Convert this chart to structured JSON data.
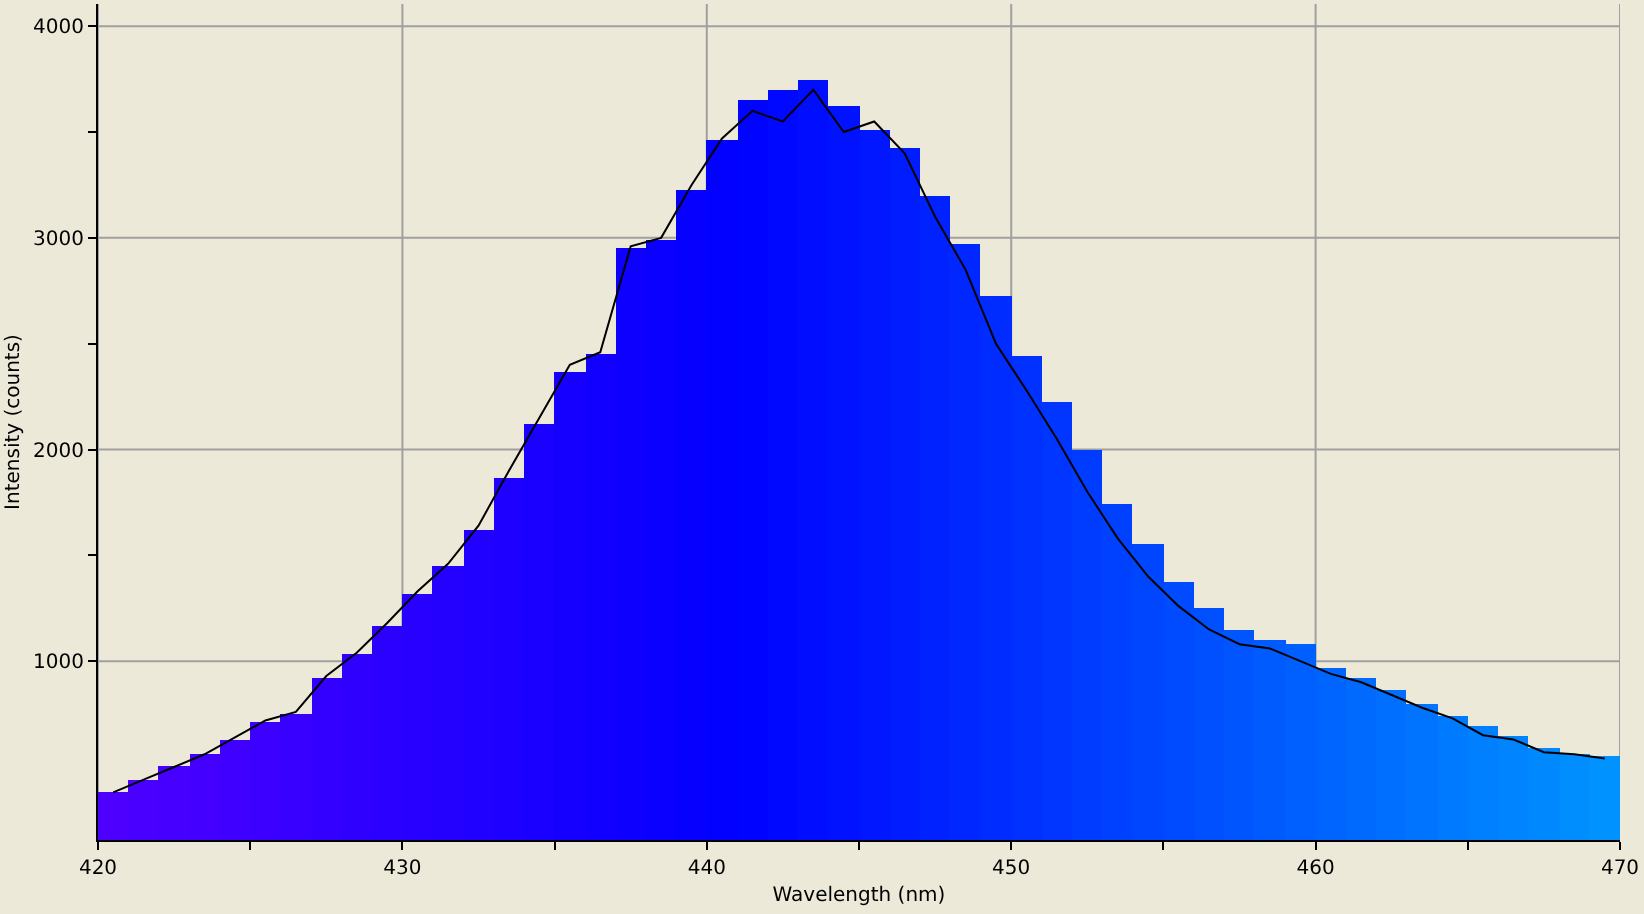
{
  "chart_data": {
    "type": "bar",
    "xlabel": "Wavelength (nm)",
    "ylabel": "Intensity (counts)",
    "x": [
      420.5,
      421.5,
      422.5,
      423.5,
      424.5,
      425.5,
      426.5,
      427.5,
      428.5,
      429.5,
      430.5,
      431.5,
      432.5,
      433.5,
      434.5,
      435.5,
      436.5,
      437.5,
      438.5,
      439.5,
      440.5,
      441.5,
      442.5,
      443.5,
      444.5,
      445.5,
      446.5,
      447.5,
      448.5,
      449.5,
      450.5,
      451.5,
      452.5,
      453.5,
      454.5,
      455.5,
      456.5,
      457.5,
      458.5,
      459.5,
      460.5,
      461.5,
      462.5,
      463.5,
      464.5,
      465.5,
      466.5,
      467.5,
      468.5,
      469.5
    ],
    "series": [
      {
        "values": [
          380,
          440,
          500,
          560,
          630,
          710,
          750,
          920,
          1030,
          1170,
          1320,
          1450,
          1620,
          1870,
          2120,
          2370,
          2450,
          2950,
          2990,
          3230,
          3460,
          3650,
          3700,
          3750,
          3620,
          3510,
          3420,
          3200,
          2970,
          2730,
          2440,
          2220,
          2000,
          1740,
          1550,
          1370,
          1250,
          1150,
          1100,
          1080,
          970,
          920,
          860,
          800,
          740,
          690,
          650,
          590,
          560,
          550
        ],
        "colors": [
          "#4e00ff",
          "#4a00ff",
          "#4600ff",
          "#4300ff",
          "#3f00ff",
          "#3b00ff",
          "#3700ff",
          "#3300ff",
          "#3000ff",
          "#2c00ff",
          "#2800ff",
          "#2400ff",
          "#2000ff",
          "#1d00ff",
          "#1900ff",
          "#1500ff",
          "#1100ff",
          "#0d00ff",
          "#0a00ff",
          "#0600ff",
          "#0200ff",
          "#0003ff",
          "#0008ff",
          "#000dff",
          "#0012ff",
          "#0017ff",
          "#001cff",
          "#0022ff",
          "#0027ff",
          "#002cff",
          "#0031ff",
          "#0036ff",
          "#003cff",
          "#0041ff",
          "#0046ff",
          "#004bff",
          "#0050ff",
          "#0055ff",
          "#005bff",
          "#0060ff",
          "#0065ff",
          "#006aff",
          "#006fff",
          "#0074ff",
          "#007aff",
          "#007fff",
          "#0084ff",
          "#0089ff",
          "#008eff",
          "#0093ff"
        ]
      },
      {
        "type": "line",
        "color": "#000000",
        "values": [
          380,
          440,
          500,
          560,
          640,
          720,
          760,
          930,
          1040,
          1180,
          1330,
          1460,
          1640,
          1900,
          2150,
          2400,
          2460,
          2960,
          3000,
          3250,
          3470,
          3600,
          3550,
          3700,
          3500,
          3550,
          3400,
          3100,
          2850,
          2500,
          2280,
          2050,
          1800,
          1580,
          1400,
          1260,
          1150,
          1080,
          1060,
          1000,
          940,
          900,
          840,
          780,
          730,
          650,
          630,
          570,
          560,
          540
        ]
      }
    ],
    "xlim": [
      420,
      470
    ],
    "xticks": [
      420,
      {
        "value": 425,
        "label": null
      },
      430,
      {
        "value": 435,
        "label": null
      },
      440,
      {
        "value": 445,
        "label": null
      },
      450,
      {
        "value": 455,
        "label": null
      },
      460,
      {
        "value": 465,
        "label": null
      },
      470
    ],
    "ylim": [
      155,
      4105
    ],
    "yticks": [
      {
        "value": 1500,
        "label": null
      },
      1000,
      2000,
      {
        "value": 2500,
        "label": null
      },
      3000,
      {
        "value": 3500,
        "label": null
      },
      4000
    ],
    "grid": true,
    "marker": "none",
    "line_style": "solid"
  }
}
